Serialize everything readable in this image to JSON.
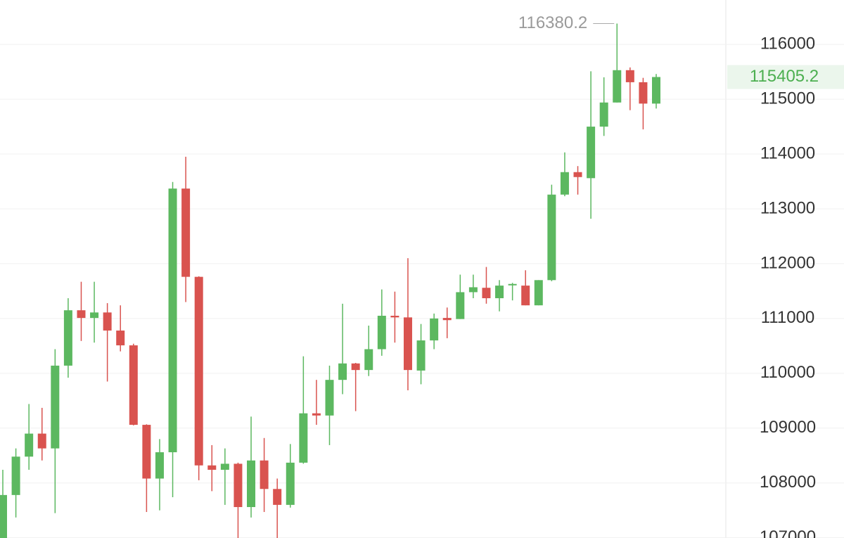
{
  "chart_data": {
    "type": "candlestick",
    "categories": [
      null,
      null,
      null,
      null,
      null,
      null,
      null,
      null,
      null,
      null,
      null,
      null,
      null,
      null,
      null,
      null,
      null,
      null,
      null,
      null,
      null,
      null,
      null,
      null,
      null,
      null,
      null,
      null,
      null,
      null,
      null,
      null,
      null,
      null,
      null,
      null,
      null,
      null,
      null,
      null,
      null,
      null,
      null,
      null,
      null,
      null,
      null,
      null,
      null,
      null,
      null
    ],
    "open": [
      106990,
      107780,
      108480,
      108900,
      108630,
      110140,
      111150,
      111010,
      111110,
      110780,
      110510,
      109060,
      108080,
      108560,
      113370,
      111760,
      108320,
      108240,
      108350,
      107560,
      108410,
      107890,
      107600,
      108370,
      109270,
      109230,
      109880,
      110180,
      110060,
      110440,
      111050,
      111020,
      110050,
      110600,
      111010,
      110990,
      111480,
      111560,
      111370,
      111610,
      111600,
      111240,
      111700,
      113260,
      113670,
      113560,
      114500,
      114940,
      115530,
      115310,
      114920
    ],
    "high": [
      108240,
      108630,
      109440,
      109370,
      110440,
      111370,
      111670,
      111670,
      111280,
      111240,
      110540,
      109070,
      108800,
      113490,
      113950,
      111770,
      108690,
      108630,
      108370,
      109210,
      108820,
      108080,
      108710,
      110310,
      109880,
      110140,
      111270,
      110190,
      110870,
      111530,
      111490,
      112100,
      110900,
      111090,
      111200,
      111800,
      111800,
      111940,
      111700,
      111650,
      111880,
      111700,
      113440,
      114030,
      113780,
      115510,
      115400,
      116380.2,
      115580,
      115390,
      115460
    ],
    "low": [
      106980,
      107370,
      108240,
      108410,
      107450,
      109920,
      110590,
      110560,
      109850,
      110400,
      109050,
      107470,
      107500,
      107740,
      111300,
      108050,
      107850,
      107600,
      106990,
      107370,
      107470,
      106990,
      107550,
      108350,
      109060,
      108690,
      109620,
      109310,
      109950,
      110320,
      110560,
      109690,
      109800,
      110440,
      110640,
      110990,
      111370,
      111270,
      111130,
      111330,
      111240,
      111240,
      111680,
      113230,
      113260,
      112820,
      114330,
      114940,
      114800,
      114450,
      114830
    ],
    "close": [
      107780,
      108480,
      108900,
      108630,
      110140,
      111150,
      111010,
      111110,
      110780,
      110510,
      109060,
      108080,
      108560,
      113370,
      111760,
      108320,
      108240,
      108350,
      107560,
      108410,
      107890,
      107600,
      108370,
      109270,
      109230,
      109880,
      110180,
      110060,
      110440,
      111050,
      111020,
      110060,
      110600,
      111000,
      110970,
      111480,
      111570,
      111370,
      111600,
      111630,
      111240,
      111700,
      113260,
      113670,
      113580,
      114500,
      114940,
      115530,
      115310,
      114920,
      115405.2
    ],
    "up_color": "#5cb860",
    "down_color": "#d9534f",
    "ylim": [
      106970,
      116810
    ],
    "yticks": [
      107000,
      108000,
      109000,
      110000,
      111000,
      112000,
      113000,
      114000,
      115000,
      116000
    ],
    "grid": true
  }
}
